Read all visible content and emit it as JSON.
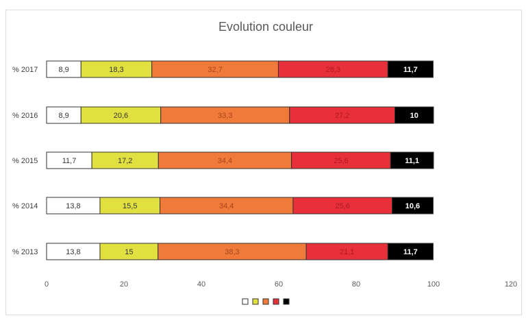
{
  "chart_data": {
    "type": "bar",
    "orientation": "horizontal",
    "stacked": true,
    "title": "Evolution couleur",
    "categories": [
      "% 2017",
      "% 2016",
      "% 2015",
      "% 2014",
      "% 2013"
    ],
    "series": [
      {
        "color": "#ffffff",
        "values": [
          8.9,
          8.9,
          11.7,
          13.8,
          13.8
        ],
        "labels": [
          "8,9",
          "8,9",
          "11,7",
          "13,8",
          "13,8"
        ]
      },
      {
        "color": "#e0e040",
        "values": [
          18.3,
          20.6,
          17.2,
          15.5,
          15
        ],
        "labels": [
          "18,3",
          "20,6",
          "17,2",
          "15,5",
          "15"
        ]
      },
      {
        "color": "#f07a3a",
        "values": [
          32.7,
          33.3,
          34.4,
          34.4,
          38.3
        ],
        "labels": [
          "32,7",
          "33,3",
          "34,4",
          "34,4",
          "38,3"
        ]
      },
      {
        "color": "#e8303a",
        "values": [
          28.3,
          27.2,
          25.6,
          25.6,
          21.1
        ],
        "labels": [
          "28,3",
          "27,2",
          "25,6",
          "25,6",
          "21,1"
        ]
      },
      {
        "color": "#000000",
        "values": [
          11.7,
          10,
          11.1,
          10.6,
          11.7
        ],
        "labels": [
          "11,7",
          "10",
          "11,1",
          "10,6",
          "11,7"
        ]
      }
    ],
    "xlim": [
      0,
      120
    ],
    "xticks": [
      "0",
      "20",
      "40",
      "60",
      "80",
      "100",
      "120"
    ],
    "grid": false,
    "legend": "bottom"
  }
}
